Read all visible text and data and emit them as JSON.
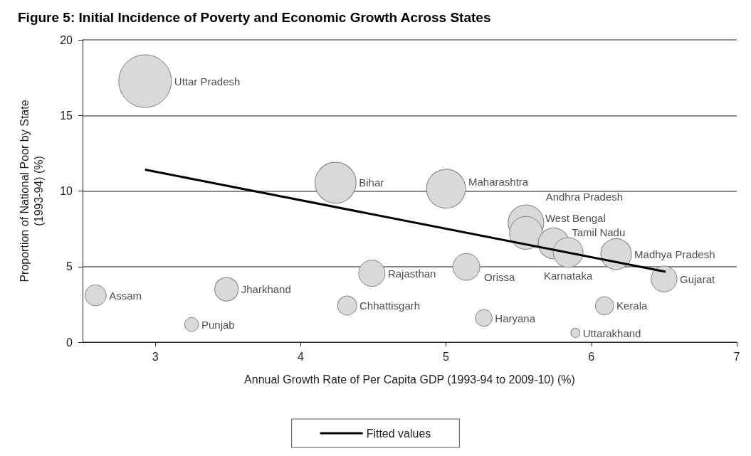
{
  "chart_data": {
    "type": "bubble",
    "title": "Figure 5: Initial Incidence of Poverty and Economic Growth Across States",
    "xlabel": "Annual Growth Rate of Per Capita GDP (1993-94 to 2009-10) (%)",
    "ylabel": "Proportion of National Poor by State\n(1993-94) (%)",
    "xlim": [
      2.5,
      7
    ],
    "xticks": [
      3,
      4,
      5,
      6,
      7
    ],
    "ylim": [
      0,
      20
    ],
    "yticks": [
      0,
      5,
      10,
      15,
      20
    ],
    "grid": "y",
    "legend": "bottom",
    "series": [
      {
        "color": "#d9d9d9",
        "x": [
          2.93,
          4.24,
          5.0,
          5.55,
          5.55,
          5.74,
          5.84,
          6.17,
          5.14,
          6.5,
          4.49,
          2.59,
          3.49,
          4.32,
          6.09,
          5.26,
          3.25,
          5.89
        ],
        "values": [
          17.27,
          10.55,
          10.15,
          7.9,
          7.23,
          6.54,
          5.94,
          5.83,
          4.98,
          4.18,
          4.56,
          3.1,
          3.5,
          2.42,
          2.41,
          1.6,
          1.17,
          0.61
        ],
        "sizes": [
          1,
          0.61,
          0.55,
          0.46,
          0.39,
          0.34,
          0.32,
          0.34,
          0.26,
          0.24,
          0.25,
          0.16,
          0.2,
          0.13,
          0.12,
          0.1,
          0.07,
          0.03
        ]
      },
      {
        "type": "line",
        "name": "Fitted values",
        "color": "#000000",
        "x": [
          2.93,
          6.51
        ],
        "values": [
          11.41,
          4.66
        ]
      }
    ],
    "annotations": [
      {
        "text": "Uttar Pradesh",
        "x": 2.93,
        "y": 17.27
      },
      {
        "text": "Bihar",
        "x": 4.24,
        "y": 10.55
      },
      {
        "text": "Maharashtra",
        "x": 5.0,
        "y": 10.15
      },
      {
        "text": "Andhra Pradesh",
        "x": 5.55,
        "y": 7.9
      },
      {
        "text": "West Bengal",
        "x": 5.55,
        "y": 7.23
      },
      {
        "text": "Tamil Nadu",
        "x": 5.74,
        "y": 6.54
      },
      {
        "text": "Karnataka",
        "x": 5.84,
        "y": 5.94
      },
      {
        "text": "Madhya Pradesh",
        "x": 6.17,
        "y": 5.83
      },
      {
        "text": "Orissa",
        "x": 5.14,
        "y": 4.98
      },
      {
        "text": "Gujarat",
        "x": 6.5,
        "y": 4.18
      },
      {
        "text": "Rajasthan",
        "x": 4.49,
        "y": 4.56
      },
      {
        "text": "Assam",
        "x": 2.59,
        "y": 3.1
      },
      {
        "text": "Jharkhand",
        "x": 3.49,
        "y": 3.5
      },
      {
        "text": "Chhattisgarh",
        "x": 4.32,
        "y": 2.42
      },
      {
        "text": "Kerala",
        "x": 6.09,
        "y": 2.41
      },
      {
        "text": "Haryana",
        "x": 5.26,
        "y": 1.6
      },
      {
        "text": "Punjab",
        "x": 3.25,
        "y": 1.17
      },
      {
        "text": "Uttarakhand",
        "x": 5.89,
        "y": 0.61
      }
    ]
  }
}
